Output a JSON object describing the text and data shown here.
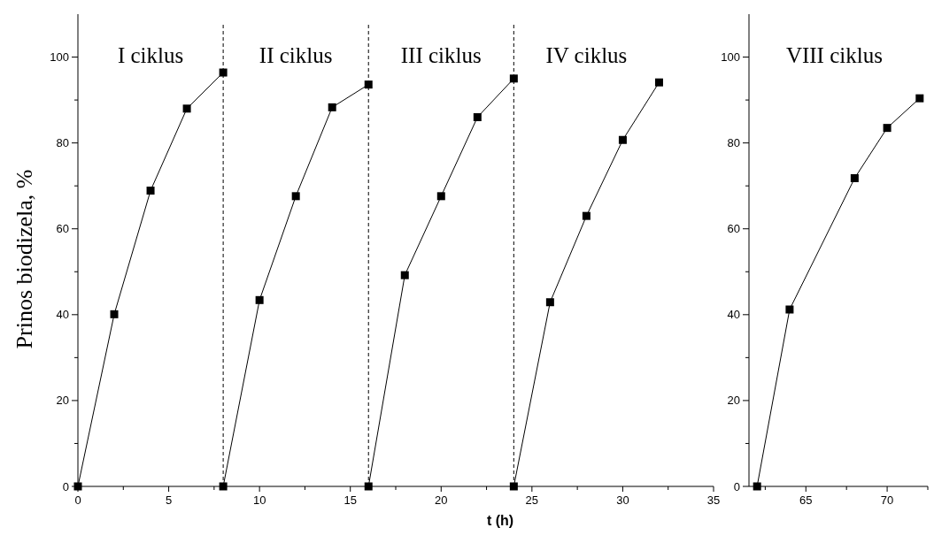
{
  "chart_data": [
    {
      "type": "line",
      "ylabel": "Prinos biodizela, %",
      "xlabel": "t (h)",
      "xlim": [
        0,
        35
      ],
      "xticks": [
        0,
        {
          "value": 2.5,
          "label": null
        },
        5,
        {
          "value": 7.5,
          "label": null
        },
        10,
        {
          "value": 12.5,
          "label": null
        },
        15,
        {
          "value": 17.5,
          "label": null
        },
        20,
        {
          "value": 22.5,
          "label": null
        },
        25,
        {
          "value": 27.5,
          "label": null
        },
        30,
        {
          "value": 32.5,
          "label": null
        },
        35
      ],
      "ylim": [
        0,
        110
      ],
      "yticks": [
        0,
        {
          "value": 10,
          "label": null
        },
        20,
        {
          "value": 30,
          "label": null
        },
        40,
        {
          "value": 50,
          "label": null
        },
        60,
        {
          "value": 70,
          "label": null
        },
        80,
        {
          "value": 90,
          "label": null
        },
        100
      ],
      "marker": "square",
      "line_style": "solid",
      "series": [
        {
          "color": "#000000",
          "x": [
            0,
            2,
            4,
            6,
            8
          ],
          "values": [
            0,
            40.1,
            68.9,
            88.0,
            96.4
          ]
        },
        {
          "color": "#000000",
          "x": [
            8,
            10,
            12,
            14,
            16
          ],
          "values": [
            0,
            43.4,
            67.6,
            88.3,
            93.6
          ]
        },
        {
          "color": "#000000",
          "x": [
            16,
            18,
            20,
            22,
            24
          ],
          "values": [
            0,
            49.2,
            67.6,
            86.0,
            95.0
          ]
        },
        {
          "color": "#000000",
          "x": [
            24,
            26,
            28,
            30,
            32
          ],
          "values": [
            0,
            42.9,
            63.0,
            80.7,
            94.1
          ]
        }
      ],
      "ref_lines": [
        {
          "axis": "x",
          "value": 8,
          "line_style": "dashed",
          "color": "#000000"
        },
        {
          "axis": "x",
          "value": 16,
          "line_style": "dashed",
          "color": "#000000"
        },
        {
          "axis": "x",
          "value": 24,
          "line_style": "dashed",
          "color": "#000000"
        }
      ],
      "annotations": [
        "I ciklus",
        "II ciklus",
        "III ciklus",
        "IV ciklus"
      ]
    },
    {
      "type": "line",
      "xlim": [
        61.5,
        72.5
      ],
      "xticks": [
        {
          "value": 62.5,
          "label": null
        },
        65,
        {
          "value": 67.5,
          "label": null
        },
        70,
        {
          "value": 72.5,
          "label": null
        }
      ],
      "ylim": [
        0,
        110
      ],
      "yticks": [
        0,
        {
          "value": 10,
          "label": null
        },
        20,
        {
          "value": 30,
          "label": null
        },
        40,
        {
          "value": 50,
          "label": null
        },
        60,
        {
          "value": 70,
          "label": null
        },
        80,
        {
          "value": 90,
          "label": null
        },
        100
      ],
      "marker": "square",
      "line_style": "solid",
      "series": [
        {
          "color": "#000000",
          "x": [
            62,
            64,
            68,
            70,
            72
          ],
          "values": [
            0,
            41.2,
            71.8,
            83.5,
            90.4
          ]
        }
      ],
      "annotations": [
        "VIII ciklus"
      ]
    }
  ]
}
